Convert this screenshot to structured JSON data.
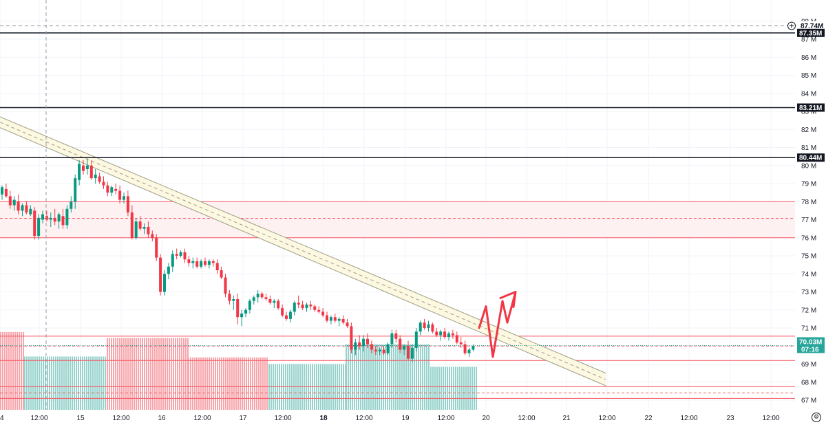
{
  "chart_data": {
    "type": "candlestick",
    "y_unit": "M",
    "ylim": [
      66.6,
      88.2
    ],
    "y_ticks": [
      "67 M",
      "68 M",
      "69 M",
      "70 M",
      "71 M",
      "72 M",
      "73 M",
      "74 M",
      "75 M",
      "76 M",
      "77 M",
      "78 M",
      "79 M",
      "80 M",
      "81 M",
      "82 M",
      "83 M",
      "84 M",
      "85 M",
      "86 M",
      "87 M",
      "88 M"
    ],
    "x_ticks": [
      "4",
      "12:00",
      "15",
      "12:00",
      "16",
      "12:00",
      "17",
      "12:00",
      "18",
      "12:00",
      "19",
      "12:00",
      "20",
      "12:00",
      "21",
      "12:00",
      "22",
      "12:00",
      "23",
      "12:00"
    ],
    "x_tick_bold": [
      "18"
    ],
    "price_levels": [
      {
        "label": "87.74M",
        "value": 87.74,
        "style": "dashed-crosshair",
        "tag_color": "#ffffff",
        "tag_text_color": "#131722"
      },
      {
        "label": "87.35M",
        "value": 87.35,
        "style": "solid",
        "tag_color": "#131722"
      },
      {
        "label": "83.21M",
        "value": 83.21,
        "style": "solid",
        "tag_color": "#131722"
      },
      {
        "label": "80.44M",
        "value": 80.44,
        "style": "solid",
        "tag_color": "#131722"
      }
    ],
    "last_price": {
      "label": "70.03M",
      "countdown": "07:16",
      "value": 70.03,
      "color": "#26a69a"
    },
    "zones": [
      {
        "top": 78.0,
        "bottom": 76.0,
        "mid": 77.07,
        "fill": "#fdf1f1",
        "line": "#f7525f"
      },
      {
        "top": 70.55,
        "bottom": 69.2,
        "mid": 70.0,
        "fill": "none",
        "line": "#f7525f"
      },
      {
        "top": 67.75,
        "bottom": 67.1,
        "mid": 67.4,
        "fill": "none",
        "line": "#f7525f"
      }
    ],
    "channel": {
      "x0": 0,
      "y0_top": 82.7,
      "y0_bottom": 82.1,
      "x1": 880,
      "y1_top": 68.5,
      "y1_bottom": 67.8,
      "fill": "#fcf8e1",
      "line": "#9e9e85"
    },
    "projection_arrow": {
      "points": [
        [
          696,
          71.0
        ],
        [
          706,
          72.2
        ],
        [
          716,
          69.4
        ],
        [
          730,
          72.5
        ],
        [
          737,
          71.3
        ],
        [
          749,
          73.0
        ]
      ],
      "color": "#f23645"
    },
    "candles": [
      [
        78.4,
        78.9,
        78.1,
        78.8
      ],
      [
        78.7,
        79.0,
        78.2,
        78.3
      ],
      [
        78.3,
        78.6,
        77.6,
        77.8
      ],
      [
        77.8,
        78.3,
        77.5,
        78.1
      ],
      [
        78.0,
        78.4,
        77.3,
        77.5
      ],
      [
        77.5,
        77.9,
        77.2,
        77.8
      ],
      [
        77.8,
        78.0,
        77.3,
        77.4
      ],
      [
        77.3,
        77.8,
        77.2,
        77.6
      ],
      [
        77.5,
        77.7,
        75.9,
        76.1
      ],
      [
        76.1,
        77.3,
        75.9,
        77.1
      ],
      [
        77.0,
        77.5,
        76.8,
        77.3
      ],
      [
        77.2,
        77.5,
        76.9,
        77.0
      ],
      [
        77.0,
        77.4,
        76.6,
        77.1
      ],
      [
        77.1,
        77.6,
        76.7,
        76.9
      ],
      [
        76.9,
        77.4,
        76.5,
        77.3
      ],
      [
        77.2,
        77.6,
        76.5,
        76.7
      ],
      [
        76.7,
        77.8,
        76.5,
        77.6
      ],
      [
        77.6,
        78.3,
        77.4,
        78.0
      ],
      [
        78.0,
        79.5,
        77.6,
        79.3
      ],
      [
        79.2,
        80.3,
        78.9,
        80.1
      ],
      [
        80.0,
        80.3,
        79.5,
        79.7
      ],
      [
        79.8,
        80.4,
        79.5,
        80.0
      ],
      [
        80.0,
        80.3,
        79.2,
        79.3
      ],
      [
        79.3,
        79.8,
        79.0,
        79.5
      ],
      [
        79.4,
        79.6,
        79.0,
        79.1
      ],
      [
        79.1,
        79.4,
        78.7,
        78.9
      ],
      [
        78.9,
        79.1,
        78.3,
        78.5
      ],
      [
        78.5,
        78.9,
        78.3,
        78.8
      ],
      [
        78.7,
        79.0,
        78.4,
        78.6
      ],
      [
        78.6,
        78.9,
        77.9,
        78.1
      ],
      [
        78.1,
        78.5,
        77.9,
        78.3
      ],
      [
        78.3,
        78.6,
        77.2,
        77.4
      ],
      [
        77.4,
        77.8,
        75.9,
        76.0
      ],
      [
        76.0,
        77.1,
        75.9,
        76.9
      ],
      [
        76.9,
        77.2,
        76.4,
        76.5
      ],
      [
        76.5,
        76.8,
        76.2,
        76.6
      ],
      [
        76.6,
        76.9,
        76.0,
        76.2
      ],
      [
        76.2,
        76.4,
        75.8,
        76.0
      ],
      [
        76.0,
        76.2,
        74.7,
        74.9
      ],
      [
        74.9,
        75.1,
        72.8,
        73.0
      ],
      [
        73.0,
        74.2,
        72.8,
        74.0
      ],
      [
        74.0,
        74.6,
        73.7,
        74.4
      ],
      [
        74.4,
        75.3,
        74.1,
        75.1
      ],
      [
        75.1,
        75.4,
        74.8,
        75.0
      ],
      [
        75.0,
        75.3,
        74.9,
        75.2
      ],
      [
        75.2,
        75.4,
        74.6,
        74.8
      ],
      [
        74.8,
        75.0,
        74.4,
        74.6
      ],
      [
        74.6,
        74.9,
        74.3,
        74.7
      ],
      [
        74.7,
        74.9,
        74.3,
        74.4
      ],
      [
        74.4,
        74.8,
        74.3,
        74.7
      ],
      [
        74.7,
        74.9,
        74.4,
        74.5
      ],
      [
        74.5,
        74.8,
        74.3,
        74.7
      ],
      [
        74.7,
        74.8,
        74.4,
        74.6
      ],
      [
        74.6,
        74.8,
        74.0,
        74.2
      ],
      [
        74.2,
        74.4,
        73.7,
        73.8
      ],
      [
        73.8,
        74.0,
        72.7,
        72.9
      ],
      [
        72.9,
        73.1,
        72.3,
        72.5
      ],
      [
        72.5,
        72.8,
        72.0,
        72.6
      ],
      [
        72.6,
        72.9,
        71.2,
        71.6
      ],
      [
        71.6,
        72.0,
        71.1,
        71.8
      ],
      [
        71.8,
        72.1,
        71.6,
        72.0
      ],
      [
        72.0,
        72.6,
        71.8,
        72.5
      ],
      [
        72.5,
        72.8,
        72.3,
        72.7
      ],
      [
        72.7,
        73.1,
        72.4,
        72.9
      ],
      [
        72.9,
        73.0,
        72.6,
        72.7
      ],
      [
        72.7,
        72.9,
        72.5,
        72.6
      ],
      [
        72.6,
        72.8,
        72.3,
        72.4
      ],
      [
        72.4,
        72.6,
        72.1,
        72.5
      ],
      [
        72.5,
        72.6,
        72.0,
        72.1
      ],
      [
        72.1,
        72.3,
        71.6,
        71.7
      ],
      [
        71.7,
        71.9,
        71.4,
        71.5
      ],
      [
        71.5,
        72.0,
        71.3,
        71.9
      ],
      [
        71.9,
        72.5,
        71.7,
        72.4
      ],
      [
        72.4,
        72.8,
        72.1,
        72.3
      ],
      [
        72.3,
        72.5,
        72.0,
        72.1
      ],
      [
        72.1,
        72.4,
        71.9,
        72.3
      ],
      [
        72.3,
        72.5,
        72.0,
        72.2
      ],
      [
        72.2,
        72.3,
        71.9,
        72.0
      ],
      [
        72.0,
        72.2,
        71.8,
        71.9
      ],
      [
        71.9,
        72.1,
        71.6,
        71.7
      ],
      [
        71.7,
        71.9,
        71.3,
        71.4
      ],
      [
        71.4,
        71.7,
        71.2,
        71.6
      ],
      [
        71.6,
        71.8,
        71.3,
        71.4
      ],
      [
        71.4,
        71.6,
        71.1,
        71.5
      ],
      [
        71.5,
        71.7,
        71.2,
        71.3
      ],
      [
        71.3,
        71.5,
        71.0,
        71.1
      ],
      [
        71.1,
        71.3,
        69.6,
        69.8
      ],
      [
        69.8,
        70.4,
        69.5,
        70.2
      ],
      [
        70.2,
        70.6,
        69.8,
        70.0
      ],
      [
        70.0,
        70.6,
        69.7,
        70.4
      ],
      [
        70.4,
        70.7,
        69.9,
        70.1
      ],
      [
        70.1,
        70.3,
        69.6,
        69.8
      ],
      [
        69.8,
        70.0,
        69.5,
        69.7
      ],
      [
        69.7,
        69.9,
        69.5,
        69.8
      ],
      [
        69.8,
        70.0,
        69.5,
        69.6
      ],
      [
        69.6,
        70.2,
        69.5,
        70.1
      ],
      [
        70.1,
        70.9,
        69.9,
        70.7
      ],
      [
        70.7,
        70.9,
        70.2,
        70.4
      ],
      [
        70.4,
        70.6,
        69.6,
        69.8
      ],
      [
        69.8,
        70.1,
        69.5,
        70.0
      ],
      [
        70.0,
        70.3,
        69.2,
        69.3
      ],
      [
        69.3,
        70.1,
        69.1,
        69.9
      ],
      [
        69.9,
        71.0,
        69.7,
        70.8
      ],
      [
        70.8,
        71.4,
        70.6,
        71.3
      ],
      [
        71.3,
        71.5,
        70.9,
        71.0
      ],
      [
        71.0,
        71.4,
        70.8,
        71.2
      ],
      [
        71.2,
        71.3,
        70.7,
        70.8
      ],
      [
        70.8,
        71.0,
        70.5,
        70.6
      ],
      [
        70.6,
        70.9,
        70.3,
        70.8
      ],
      [
        70.8,
        71.0,
        70.4,
        70.5
      ],
      [
        70.5,
        70.8,
        70.3,
        70.7
      ],
      [
        70.7,
        70.9,
        70.4,
        70.6
      ],
      [
        70.6,
        70.8,
        70.1,
        70.2
      ],
      [
        70.2,
        70.5,
        69.9,
        70.1
      ],
      [
        70.1,
        70.3,
        69.5,
        69.6
      ],
      [
        69.6,
        69.9,
        69.4,
        69.8
      ],
      [
        69.8,
        70.1,
        69.7,
        70.0
      ]
    ],
    "volume_profile": [
      {
        "from": 0,
        "to": 35,
        "top": 70.78,
        "color": "#f7a6ac"
      },
      {
        "from": 35,
        "to": 155,
        "top": 69.42,
        "color": "#98d2cc"
      },
      {
        "from": 155,
        "to": 273,
        "top": 70.45,
        "color": "#f7a6ac"
      },
      {
        "from": 273,
        "to": 390,
        "top": 69.37,
        "color": "#f7a6ac"
      },
      {
        "from": 390,
        "to": 502,
        "top": 69.0,
        "color": "#98d2cc"
      },
      {
        "from": 502,
        "to": 625,
        "top": 70.1,
        "color": "#98d2cc"
      },
      {
        "from": 625,
        "to": 693,
        "top": 68.85,
        "color": "#98d2cc"
      }
    ],
    "colors": {
      "up": "#089981",
      "down": "#f23645",
      "grid": "#f0f3fa",
      "axis_text": "#131722"
    }
  }
}
